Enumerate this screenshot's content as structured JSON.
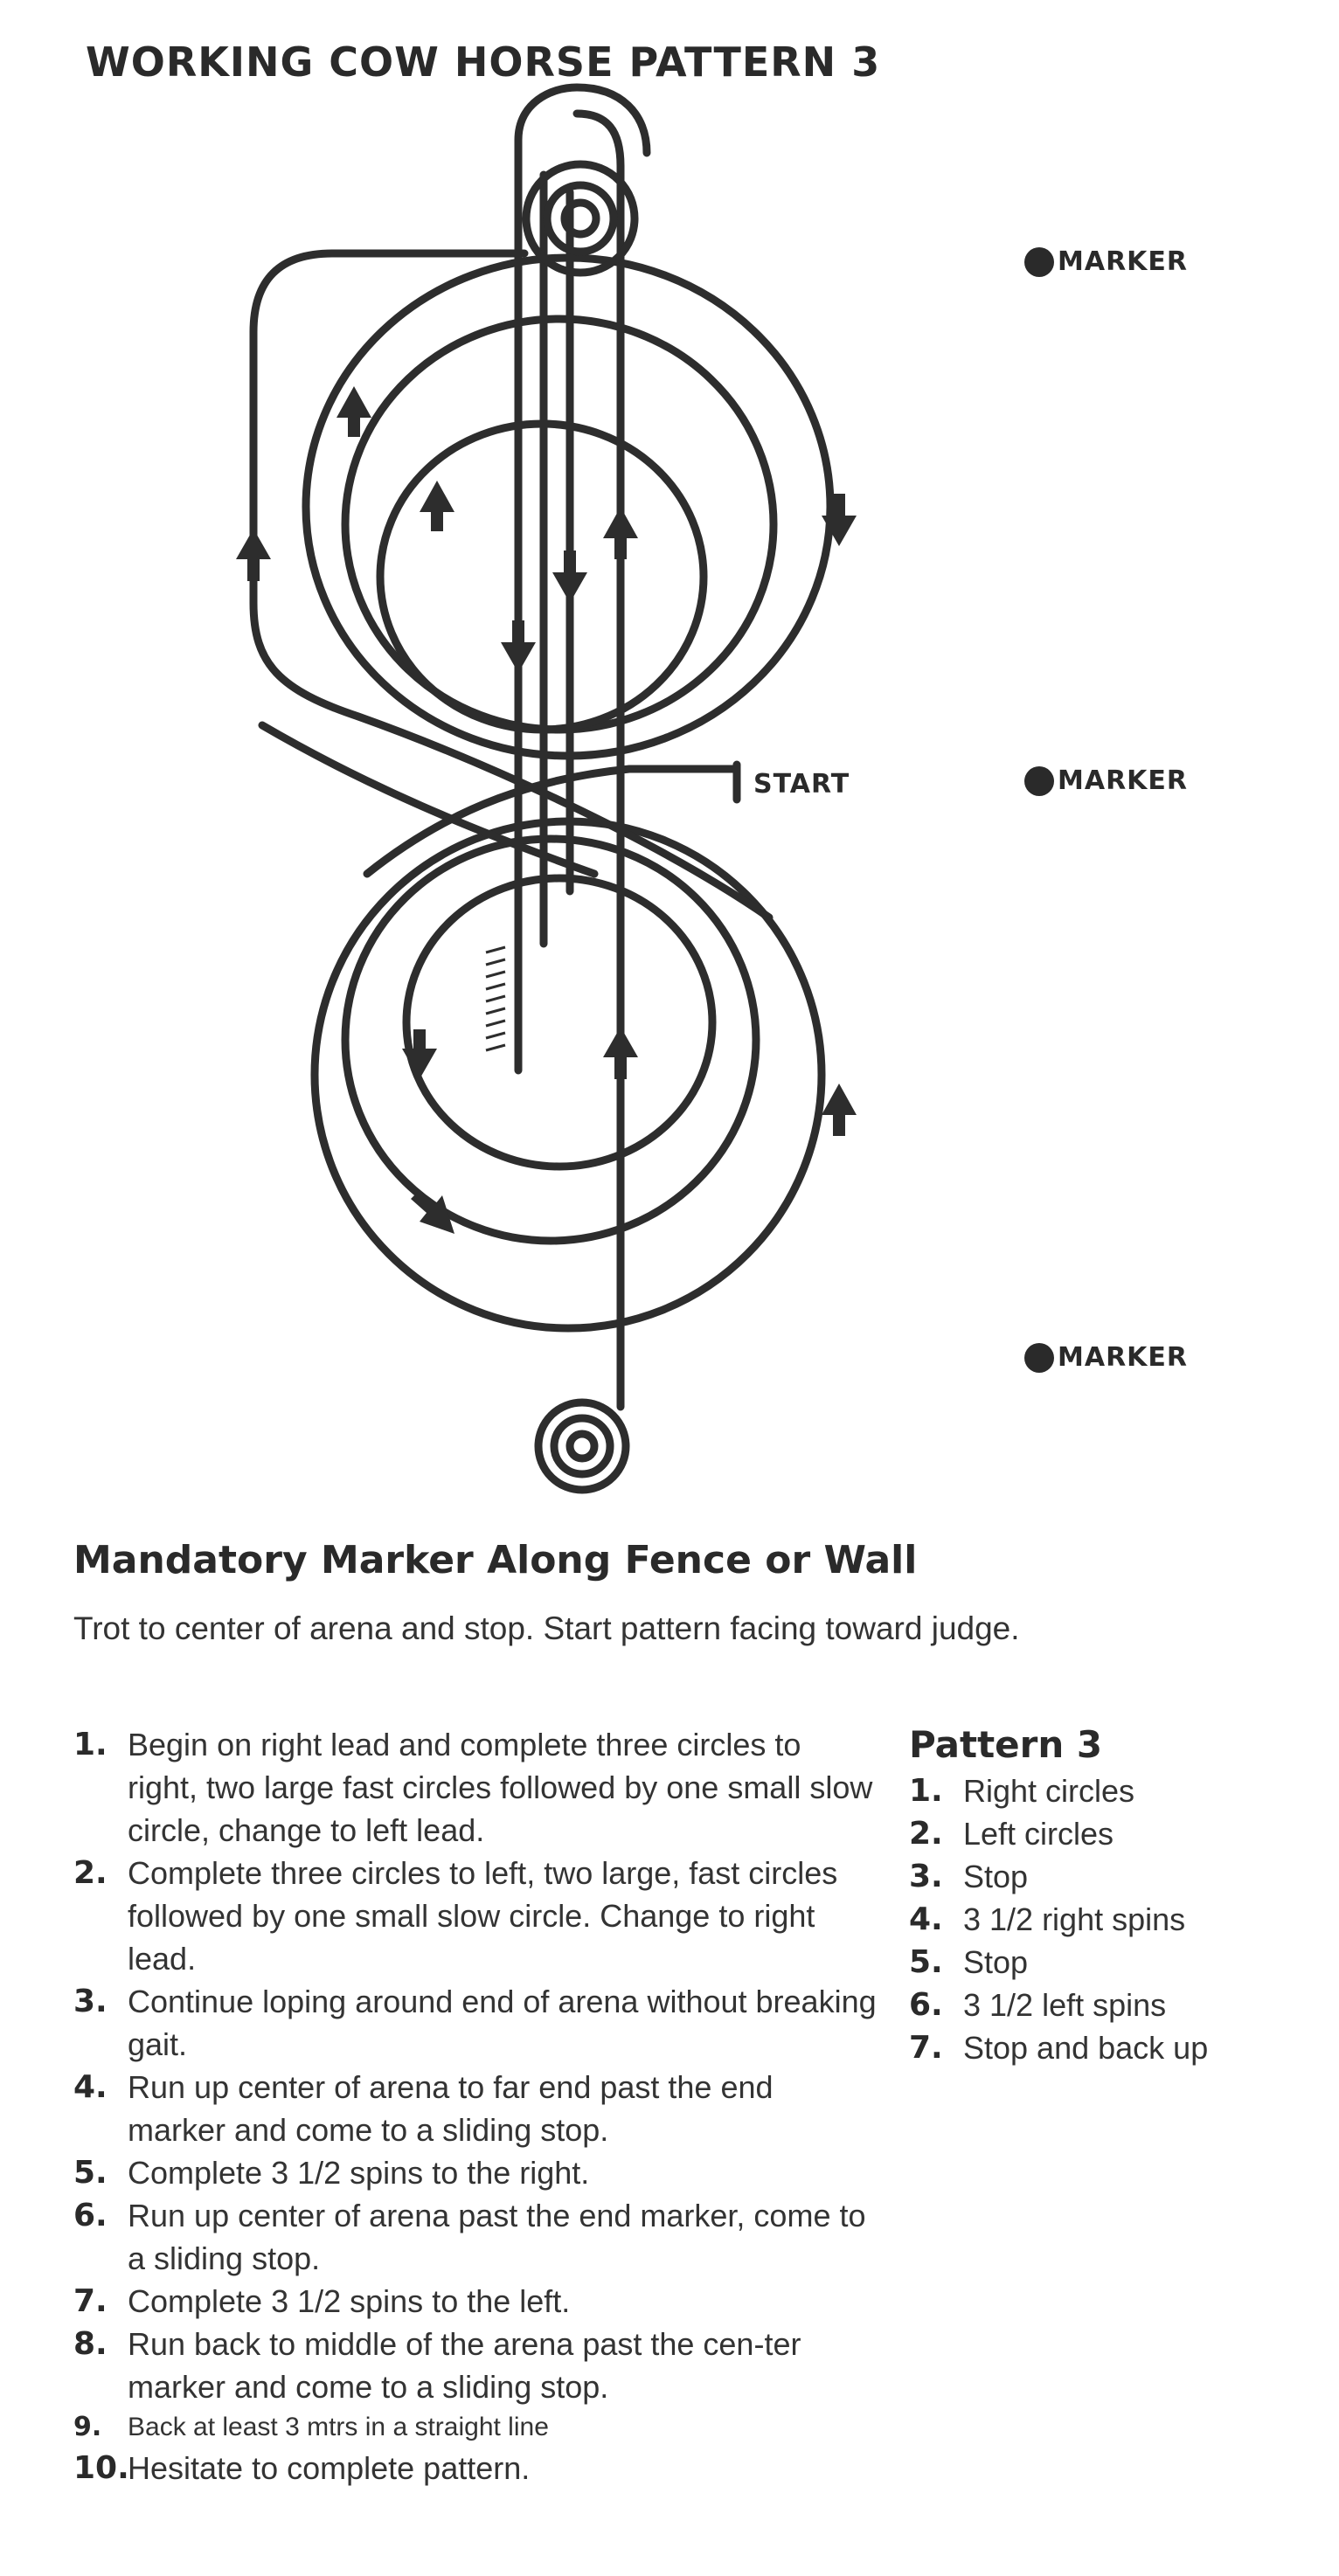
{
  "title": "WORKING COW HORSE PATTERN 3",
  "diagram": {
    "start_label": "START",
    "markers": [
      {
        "label": "MARKER"
      },
      {
        "label": "MARKER"
      },
      {
        "label": "MARKER"
      }
    ]
  },
  "heading": "Mandatory Marker Along Fence or Wall",
  "intro": "Trot to center of arena and stop. Start pattern facing toward judge.",
  "steps": [
    {
      "num": "1.",
      "text": "Begin on right lead and complete three circles to right, two large fast circles followed by one small slow circle, change to left lead."
    },
    {
      "num": "2.",
      "text": "Complete three circles to left, two large, fast circles followed by one small slow circle. Change to right lead."
    },
    {
      "num": "3.",
      "text": "Continue loping around end of arena without breaking gait."
    },
    {
      "num": "4.",
      "text": "Run up center of arena to far end past the end marker and come to a sliding stop."
    },
    {
      "num": "5.",
      "text": "Complete 3 1/2 spins to the right."
    },
    {
      "num": "6.",
      "text": "Run up center of arena past the end marker, come to a sliding stop."
    },
    {
      "num": "7.",
      "text": "Complete 3 1/2 spins to the left."
    },
    {
      "num": "8.",
      "text": "Run back to middle of the arena past the cen-ter marker and come to a sliding stop."
    },
    {
      "num": "9.",
      "text": "Back at least 3 mtrs in a straight line"
    },
    {
      "num": "10.",
      "text": "Hesitate to complete pattern."
    }
  ],
  "summary": {
    "title": "Pattern 3",
    "items": [
      {
        "num": "1.",
        "text": "Right circles"
      },
      {
        "num": "2.",
        "text": "Left circles"
      },
      {
        "num": "3.",
        "text": "Stop"
      },
      {
        "num": "4.",
        "text": "3 1/2 right spins"
      },
      {
        "num": "5.",
        "text": "Stop"
      },
      {
        "num": "6.",
        "text": "3 1/2 left spins"
      },
      {
        "num": "7.",
        "text": "Stop and back up"
      }
    ]
  }
}
